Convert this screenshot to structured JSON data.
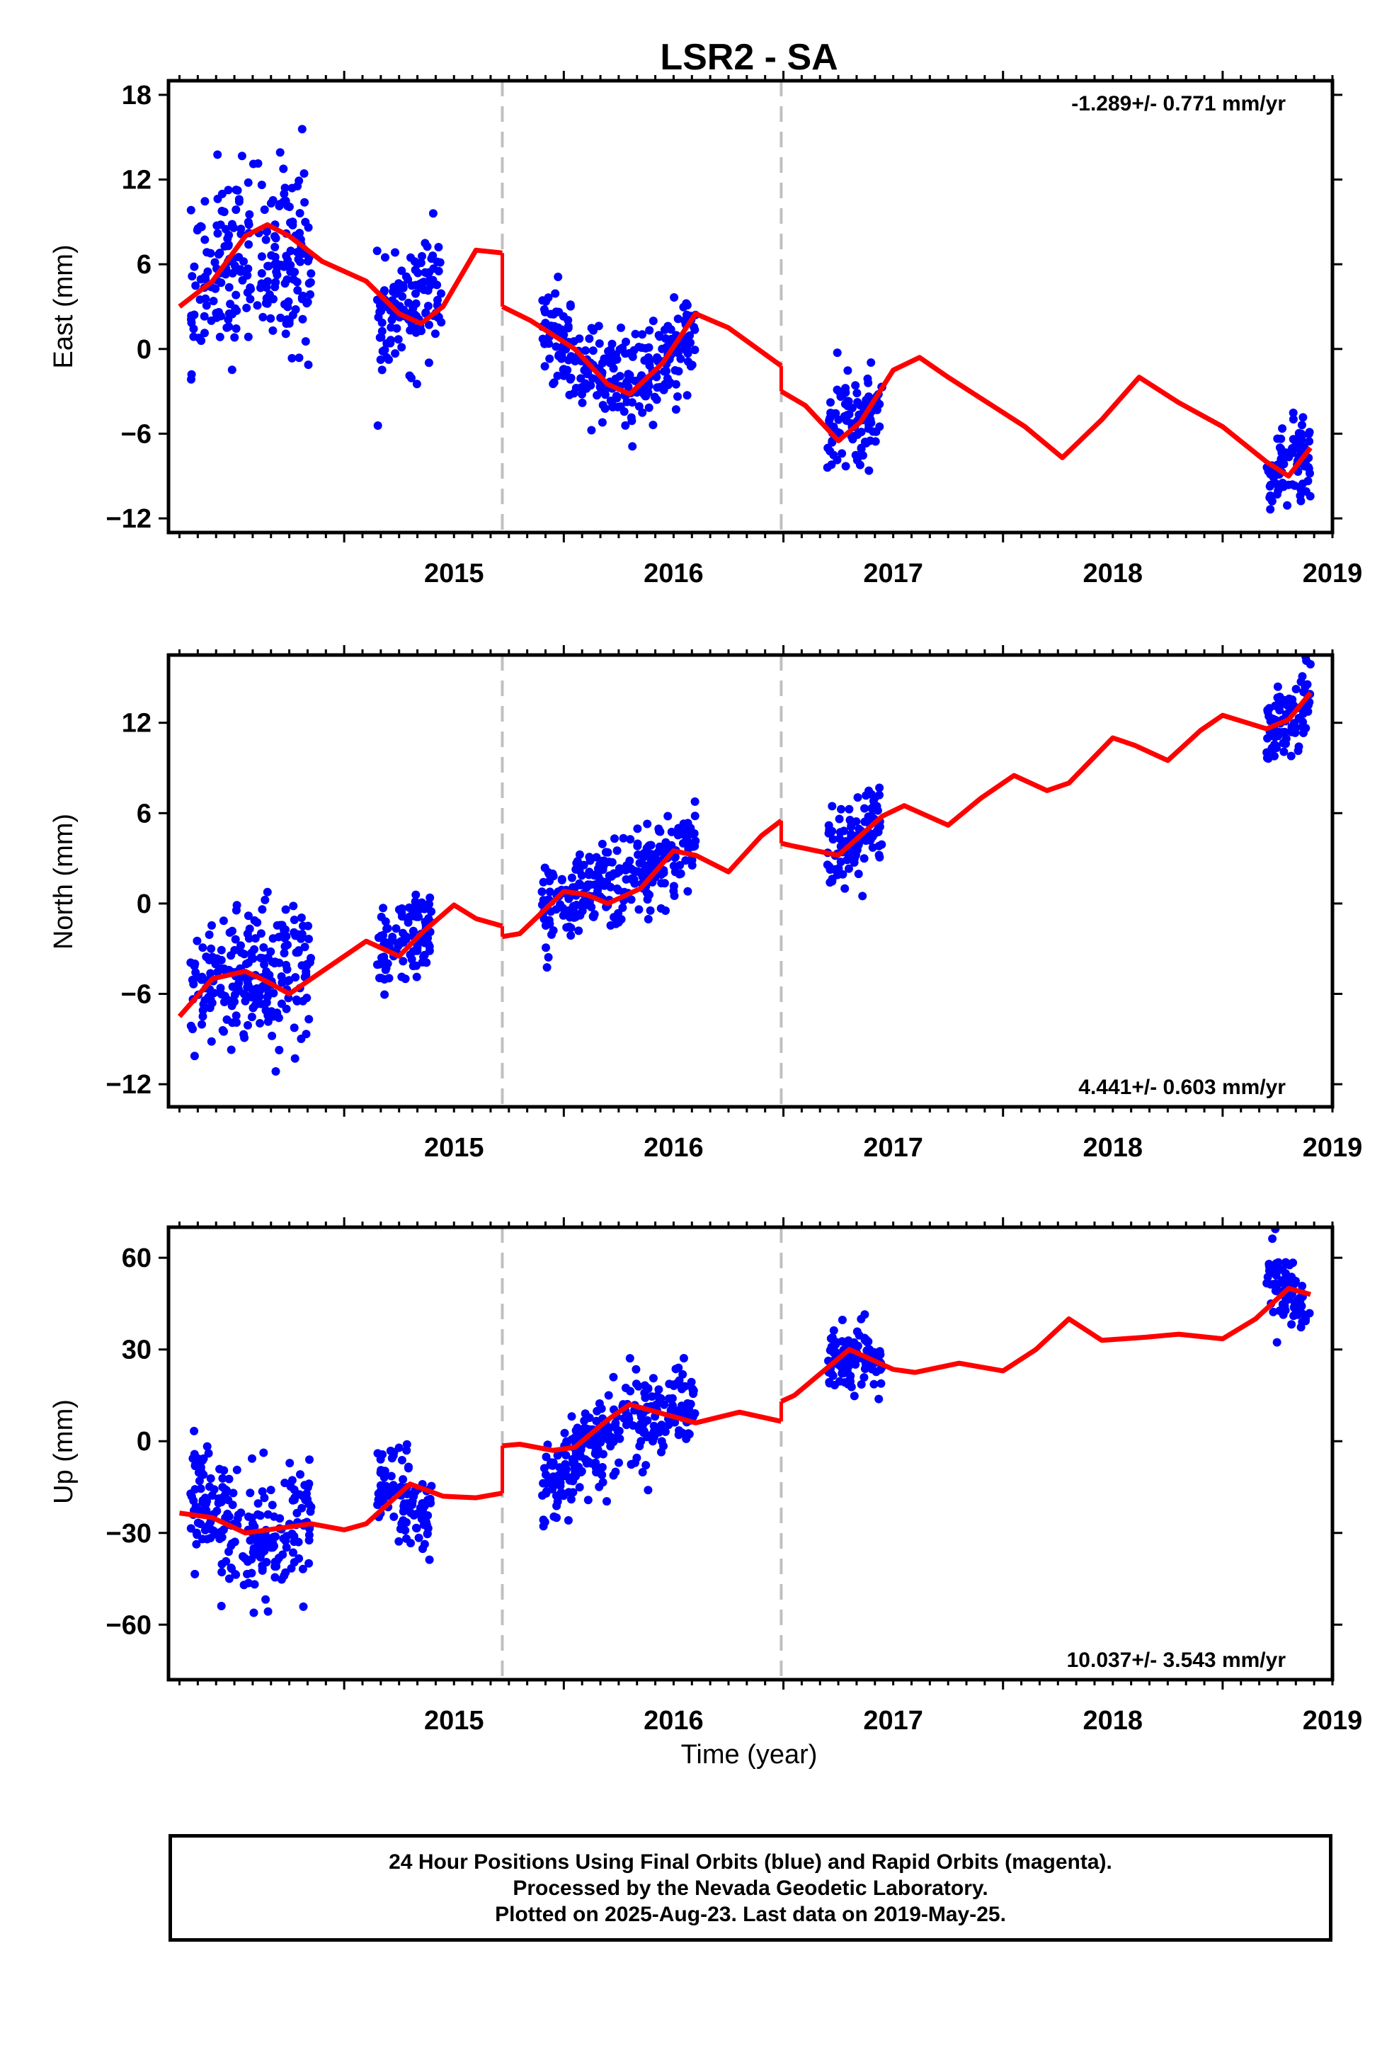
{
  "colors": {
    "data_points": "#0000ff",
    "model_line": "#ff0000",
    "break_lines": "#c0c0c0"
  },
  "chart_data": {
    "type": "scatter",
    "title": "LSR2 - SA",
    "xlabel": "Time (year)",
    "xlim": [
      2014.2,
      2019.5
    ],
    "xticks": [
      2015,
      2016,
      2017,
      2018,
      2019
    ],
    "breaks": [
      2015.72,
      2016.99
    ],
    "grid": false,
    "panels": [
      {
        "ylabel": "East (mm)",
        "ylim": [
          -13,
          19
        ],
        "yticks": [
          18,
          12,
          6,
          0,
          -6,
          -12
        ],
        "rate_text": "-1.289+/- 0.771 mm/yr",
        "rate_position": "top-right",
        "data_segments": [
          {
            "x": [
              2014.3,
              2014.85
            ],
            "center": [
              3,
              6
            ],
            "bump": 2.5,
            "spread": 3.2
          },
          {
            "x": [
              2015.15,
              2015.45
            ],
            "center": [
              1.5,
              4.5
            ],
            "bump": 0,
            "spread": 2.0
          },
          {
            "x": [
              2015.9,
              2016.6
            ],
            "center": [
              1.5,
              1.5
            ],
            "bump": -4.0,
            "spread": 1.6
          },
          {
            "x": [
              2017.2,
              2017.45
            ],
            "center": [
              -5.5,
              -4.5
            ],
            "bump": 0,
            "spread": 1.6
          },
          {
            "x": [
              2019.2,
              2019.4
            ],
            "center": [
              -9,
              -7.5
            ],
            "bump": 0,
            "spread": 1.4
          }
        ],
        "model": [
          [
            2014.25,
            3.0
          ],
          [
            2014.4,
            4.8
          ],
          [
            2014.55,
            8.0
          ],
          [
            2014.65,
            8.8
          ],
          [
            2014.75,
            8.0
          ],
          [
            2014.9,
            6.2
          ],
          [
            2015.1,
            4.8
          ],
          [
            2015.25,
            2.5
          ],
          [
            2015.35,
            1.8
          ],
          [
            2015.45,
            3.0
          ],
          [
            2015.6,
            7.0
          ],
          [
            2015.72,
            6.8
          ],
          [
            2015.72,
            3.0
          ],
          [
            2015.85,
            2.0
          ],
          [
            2016.05,
            0.0
          ],
          [
            2016.2,
            -2.5
          ],
          [
            2016.3,
            -3.2
          ],
          [
            2016.45,
            -1.0
          ],
          [
            2016.6,
            2.5
          ],
          [
            2016.75,
            1.5
          ],
          [
            2016.99,
            -1.2
          ],
          [
            2016.99,
            -3.0
          ],
          [
            2017.1,
            -4.0
          ],
          [
            2017.25,
            -6.5
          ],
          [
            2017.35,
            -5.2
          ],
          [
            2017.5,
            -1.5
          ],
          [
            2017.62,
            -0.6
          ],
          [
            2017.75,
            -2.0
          ],
          [
            2017.95,
            -4.0
          ],
          [
            2018.1,
            -5.5
          ],
          [
            2018.27,
            -7.7
          ],
          [
            2018.45,
            -5.0
          ],
          [
            2018.62,
            -2.0
          ],
          [
            2018.8,
            -3.8
          ],
          [
            2019.0,
            -5.5
          ],
          [
            2019.2,
            -8.0
          ],
          [
            2019.3,
            -9.0
          ],
          [
            2019.4,
            -7.0
          ]
        ]
      },
      {
        "ylabel": "North (mm)",
        "ylim": [
          -13.5,
          16.5
        ],
        "yticks": [
          12,
          6,
          0,
          -6,
          -12
        ],
        "rate_text": "4.441+/- 0.603 mm/yr",
        "rate_position": "bottom-right",
        "data_segments": [
          {
            "x": [
              2014.3,
              2014.85
            ],
            "center": [
              -6,
              -4
            ],
            "bump": 0,
            "spread": 2.3
          },
          {
            "x": [
              2015.15,
              2015.4
            ],
            "center": [
              -3.5,
              -1.5
            ],
            "bump": 0,
            "spread": 1.4
          },
          {
            "x": [
              2015.9,
              2016.6
            ],
            "center": [
              0,
              4
            ],
            "bump": -0.5,
            "spread": 1.3
          },
          {
            "x": [
              2017.2,
              2017.45
            ],
            "center": [
              3,
              5.5
            ],
            "bump": 0,
            "spread": 1.4
          },
          {
            "x": [
              2019.2,
              2019.4
            ],
            "center": [
              11.5,
              13.5
            ],
            "bump": 0,
            "spread": 1.2
          }
        ],
        "model": [
          [
            2014.25,
            -7.5
          ],
          [
            2014.4,
            -5.0
          ],
          [
            2014.55,
            -4.5
          ],
          [
            2014.65,
            -5.2
          ],
          [
            2014.75,
            -6.0
          ],
          [
            2014.9,
            -4.5
          ],
          [
            2015.1,
            -2.5
          ],
          [
            2015.25,
            -3.5
          ],
          [
            2015.35,
            -2.0
          ],
          [
            2015.5,
            -0.1
          ],
          [
            2015.6,
            -1.0
          ],
          [
            2015.72,
            -1.5
          ],
          [
            2015.72,
            -2.2
          ],
          [
            2015.8,
            -2.0
          ],
          [
            2016.0,
            0.8
          ],
          [
            2016.1,
            0.6
          ],
          [
            2016.2,
            0.0
          ],
          [
            2016.35,
            1.0
          ],
          [
            2016.5,
            3.5
          ],
          [
            2016.6,
            3.2
          ],
          [
            2016.75,
            2.1
          ],
          [
            2016.9,
            4.5
          ],
          [
            2016.99,
            5.5
          ],
          [
            2016.99,
            4.0
          ],
          [
            2017.05,
            3.8
          ],
          [
            2017.25,
            3.2
          ],
          [
            2017.45,
            5.8
          ],
          [
            2017.55,
            6.5
          ],
          [
            2017.75,
            5.2
          ],
          [
            2017.9,
            7.0
          ],
          [
            2018.05,
            8.5
          ],
          [
            2018.2,
            7.5
          ],
          [
            2018.3,
            8.0
          ],
          [
            2018.5,
            11.0
          ],
          [
            2018.6,
            10.5
          ],
          [
            2018.75,
            9.5
          ],
          [
            2018.9,
            11.5
          ],
          [
            2019.0,
            12.5
          ],
          [
            2019.2,
            11.6
          ],
          [
            2019.3,
            12.2
          ],
          [
            2019.4,
            14.0
          ]
        ]
      },
      {
        "ylabel": "Up (mm)",
        "ylim": [
          -78,
          70
        ],
        "yticks": [
          60,
          30,
          0,
          -30,
          -60
        ],
        "rate_text": "10.037+/- 3.543 mm/yr",
        "rate_position": "bottom-right",
        "data_segments": [
          {
            "x": [
              2014.3,
              2014.85
            ],
            "center": [
              -15,
              -27
            ],
            "bump": -12,
            "spread": 11
          },
          {
            "x": [
              2015.15,
              2015.4
            ],
            "center": [
              -15,
              -25
            ],
            "bump": 0,
            "spread": 8
          },
          {
            "x": [
              2015.9,
              2016.6
            ],
            "center": [
              -15,
              10
            ],
            "bump": 6,
            "spread": 7
          },
          {
            "x": [
              2017.2,
              2017.45
            ],
            "center": [
              28,
              27
            ],
            "bump": 0,
            "spread": 5
          },
          {
            "x": [
              2019.2,
              2019.4
            ],
            "center": [
              55,
              45
            ],
            "bump": 0,
            "spread": 6
          }
        ],
        "model": [
          [
            2014.25,
            -23.5
          ],
          [
            2014.4,
            -25.0
          ],
          [
            2014.55,
            -30.0
          ],
          [
            2014.7,
            -28.5
          ],
          [
            2014.85,
            -27.0
          ],
          [
            2015.0,
            -29.0
          ],
          [
            2015.1,
            -27.0
          ],
          [
            2015.3,
            -14.0
          ],
          [
            2015.45,
            -18.0
          ],
          [
            2015.6,
            -18.5
          ],
          [
            2015.72,
            -17.0
          ],
          [
            2015.72,
            -1.5
          ],
          [
            2015.8,
            -1.0
          ],
          [
            2015.95,
            -3.0
          ],
          [
            2016.05,
            -2.0
          ],
          [
            2016.2,
            7.0
          ],
          [
            2016.3,
            12.0
          ],
          [
            2016.45,
            9.0
          ],
          [
            2016.6,
            6.0
          ],
          [
            2016.8,
            9.5
          ],
          [
            2016.99,
            6.5
          ],
          [
            2016.99,
            13.0
          ],
          [
            2017.05,
            15.0
          ],
          [
            2017.3,
            30.0
          ],
          [
            2017.5,
            23.5
          ],
          [
            2017.6,
            22.5
          ],
          [
            2017.8,
            25.5
          ],
          [
            2018.0,
            23.0
          ],
          [
            2018.15,
            30.0
          ],
          [
            2018.3,
            40.0
          ],
          [
            2018.45,
            33.0
          ],
          [
            2018.65,
            34.0
          ],
          [
            2018.8,
            35.0
          ],
          [
            2019.0,
            33.5
          ],
          [
            2019.15,
            40.0
          ],
          [
            2019.3,
            50.0
          ],
          [
            2019.4,
            48.0
          ]
        ]
      }
    ]
  },
  "footer": {
    "line1": "24 Hour Positions Using Final Orbits (blue) and Rapid Orbits (magenta).",
    "line2": "Processed by the Nevada Geodetic Laboratory.",
    "line3": "Plotted on 2025-Aug-23. Last data on 2019-May-25."
  }
}
